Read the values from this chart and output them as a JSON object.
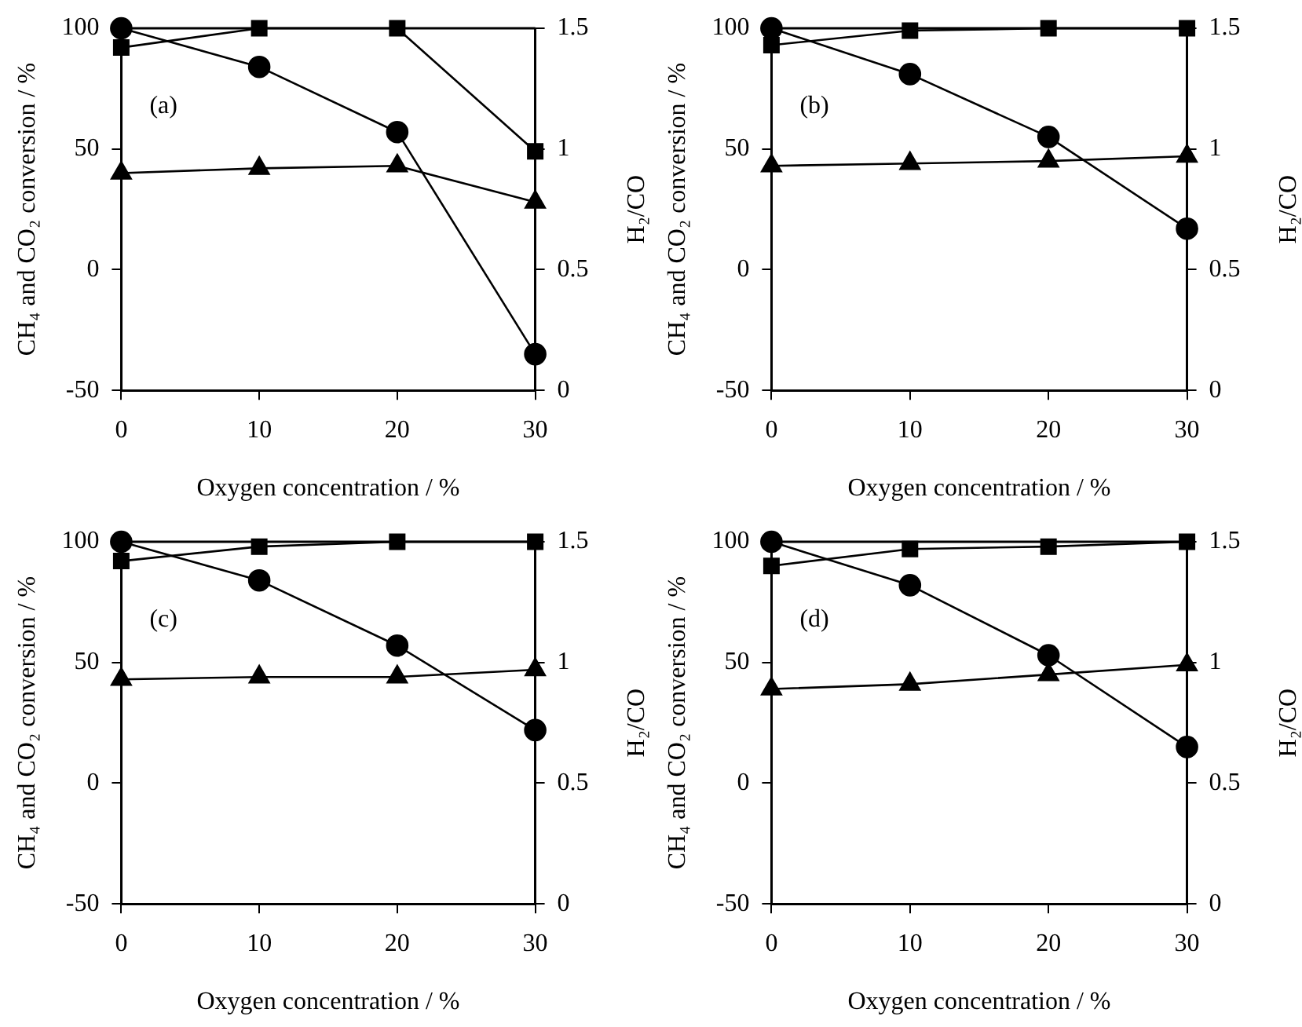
{
  "chart_data": [
    {
      "type": "line",
      "xlabel": "Oxygen concentration / %",
      "ylabel": "CH₄ and CO₂ conversion / %",
      "y2label": "H₂/CO",
      "annotations": [
        "(a)"
      ],
      "x": [
        0,
        10,
        20,
        30
      ],
      "xlim": [
        0,
        30
      ],
      "xticks": [
        0,
        10,
        20,
        30
      ],
      "ylim": [
        -50,
        100
      ],
      "yticks": [
        -50,
        0,
        50,
        100
      ],
      "y2lim": [
        0,
        1.5
      ],
      "y2ticks": [
        0,
        0.5,
        1,
        1.5
      ],
      "series": [
        {
          "color": "#000000",
          "marker": "square",
          "values": [
            92,
            100,
            100,
            49
          ]
        },
        {
          "color": "#000000",
          "marker": "circle",
          "values": [
            100,
            84,
            57,
            -35
          ]
        },
        {
          "color": "#000000",
          "marker": "triangle",
          "axis": "y2",
          "values": [
            0.9,
            0.92,
            0.93,
            0.78
          ]
        }
      ]
    },
    {
      "type": "line",
      "xlabel": "Oxygen concentration / %",
      "ylabel": "CH₄ and CO₂ conversion / %",
      "y2label": "H₂/CO",
      "annotations": [
        "(b)"
      ],
      "x": [
        0,
        10,
        20,
        30
      ],
      "xlim": [
        0,
        30
      ],
      "xticks": [
        0,
        10,
        20,
        30
      ],
      "ylim": [
        -50,
        100
      ],
      "yticks": [
        -50,
        0,
        50,
        100
      ],
      "y2lim": [
        0,
        1.5
      ],
      "y2ticks": [
        0,
        0.5,
        1,
        1.5
      ],
      "series": [
        {
          "color": "#000000",
          "marker": "square",
          "values": [
            93,
            99,
            100,
            100
          ]
        },
        {
          "color": "#000000",
          "marker": "circle",
          "values": [
            100,
            81,
            55,
            17
          ]
        },
        {
          "color": "#000000",
          "marker": "triangle",
          "axis": "y2",
          "values": [
            0.93,
            0.94,
            0.95,
            0.97
          ]
        }
      ]
    },
    {
      "type": "line",
      "xlabel": "Oxygen concentration / %",
      "ylabel": "CH₄ and CO₂ conversion / %",
      "y2label": "H₂/CO",
      "annotations": [
        "(c)"
      ],
      "x": [
        0,
        10,
        20,
        30
      ],
      "xlim": [
        0,
        30
      ],
      "xticks": [
        0,
        10,
        20,
        30
      ],
      "ylim": [
        -50,
        100
      ],
      "yticks": [
        -50,
        0,
        50,
        100
      ],
      "y2lim": [
        0,
        1.5
      ],
      "y2ticks": [
        0,
        0.5,
        1,
        1.5
      ],
      "series": [
        {
          "color": "#000000",
          "marker": "square",
          "values": [
            92,
            98,
            100,
            100
          ]
        },
        {
          "color": "#000000",
          "marker": "circle",
          "values": [
            100,
            84,
            57,
            22
          ]
        },
        {
          "color": "#000000",
          "marker": "triangle",
          "axis": "y2",
          "values": [
            0.93,
            0.94,
            0.94,
            0.97
          ]
        }
      ]
    },
    {
      "type": "line",
      "xlabel": "Oxygen concentration / %",
      "ylabel": "CH₄ and CO₂ conversion / %",
      "y2label": "H₂/CO",
      "annotations": [
        "(d)"
      ],
      "x": [
        0,
        10,
        20,
        30
      ],
      "xlim": [
        0,
        30
      ],
      "xticks": [
        0,
        10,
        20,
        30
      ],
      "ylim": [
        -50,
        100
      ],
      "yticks": [
        -50,
        0,
        50,
        100
      ],
      "y2lim": [
        0,
        1.5
      ],
      "y2ticks": [
        0,
        0.5,
        1,
        1.5
      ],
      "series": [
        {
          "color": "#000000",
          "marker": "square",
          "values": [
            90,
            97,
            98,
            100
          ]
        },
        {
          "color": "#000000",
          "marker": "circle",
          "values": [
            100,
            82,
            53,
            15
          ]
        },
        {
          "color": "#000000",
          "marker": "triangle",
          "axis": "y2",
          "values": [
            0.89,
            0.91,
            0.95,
            0.99
          ]
        }
      ]
    }
  ]
}
